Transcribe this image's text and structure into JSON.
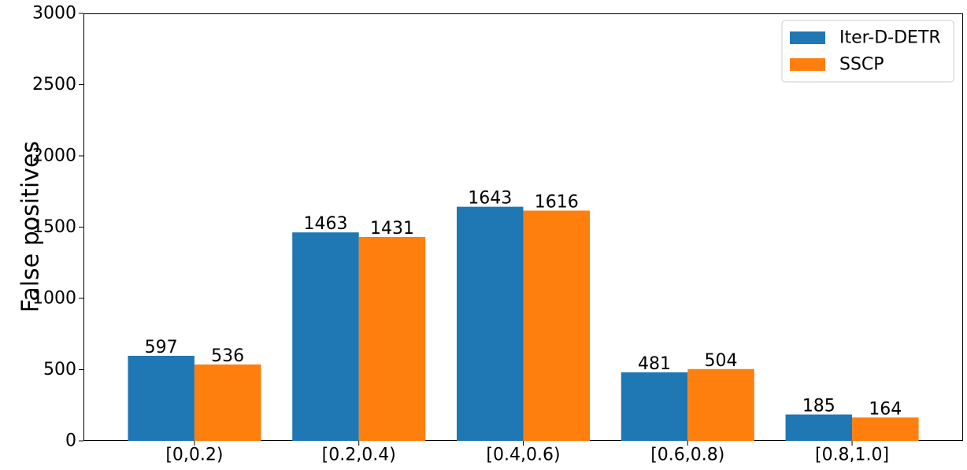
{
  "chart_data": {
    "type": "bar",
    "title": "",
    "xlabel": "",
    "ylabel": "False positives",
    "categories": [
      "[0,0.2)",
      "[0.2,0.4)",
      "[0.4,0.6)",
      "[0.6,0.8)",
      "[0.8,1.0]"
    ],
    "series": [
      {
        "name": "Iter-D-DETR",
        "color": "#1f77b4",
        "values": [
          597,
          1463,
          1643,
          481,
          185
        ]
      },
      {
        "name": "SSCP",
        "color": "#ff7f0e",
        "values": [
          536,
          1431,
          1616,
          504,
          164
        ]
      }
    ],
    "ylim": [
      0,
      3000
    ],
    "yticks": [
      0,
      500,
      1000,
      1500,
      2000,
      2500,
      3000
    ],
    "grid": false,
    "legend_position": "top-right",
    "data_labels": true
  }
}
